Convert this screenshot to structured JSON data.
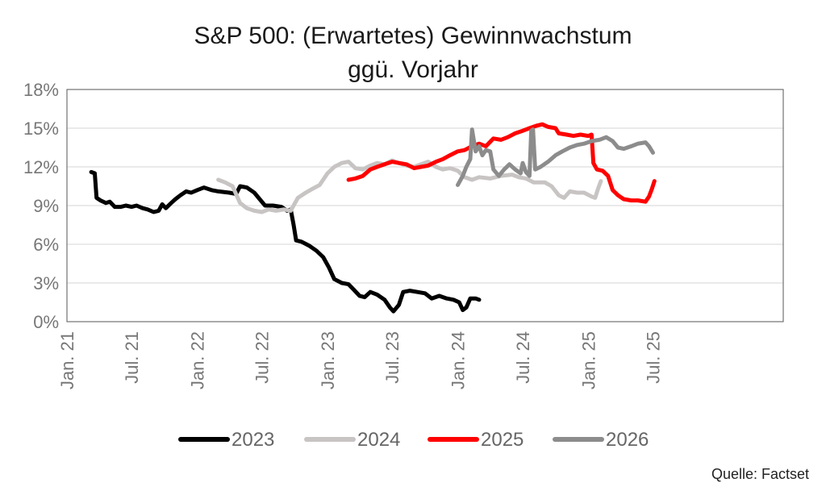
{
  "chart_data": {
    "type": "line",
    "title": [
      "S&P 500: (Erwartetes) Gewinnwachstum",
      "ggü. Vorjahr"
    ],
    "ylim": [
      0,
      18
    ],
    "yticks": [
      "0%",
      "3%",
      "6%",
      "9%",
      "12%",
      "15%",
      "18%"
    ],
    "xlim": [
      "2021-01-01",
      "2026-07-01"
    ],
    "xticks": [
      {
        "date": "2021-01-01",
        "label": "Jan. 21"
      },
      {
        "date": "2021-07-01",
        "label": "Jul. 21"
      },
      {
        "date": "2022-01-01",
        "label": "Jan. 22"
      },
      {
        "date": "2022-07-01",
        "label": "Jul. 22"
      },
      {
        "date": "2023-01-01",
        "label": "Jan. 23"
      },
      {
        "date": "2023-07-01",
        "label": "Jul. 23"
      },
      {
        "date": "2024-01-01",
        "label": "Jan. 24"
      },
      {
        "date": "2024-07-01",
        "label": "Jul. 24"
      },
      {
        "date": "2025-01-01",
        "label": "Jan. 25"
      },
      {
        "date": "2025-07-01",
        "label": "Jul. 25"
      }
    ],
    "grid": true,
    "legend": "bottom",
    "series": [
      {
        "name": "2023",
        "color": "#000000",
        "points": [
          [
            "2021-03-10",
            11.6
          ],
          [
            "2021-03-20",
            11.5
          ],
          [
            "2021-03-25",
            9.6
          ],
          [
            "2021-04-05",
            9.4
          ],
          [
            "2021-04-20",
            9.2
          ],
          [
            "2021-05-01",
            9.3
          ],
          [
            "2021-05-15",
            8.9
          ],
          [
            "2021-06-01",
            8.9
          ],
          [
            "2021-06-15",
            9.0
          ],
          [
            "2021-07-01",
            8.9
          ],
          [
            "2021-07-15",
            9.0
          ],
          [
            "2021-08-01",
            8.8
          ],
          [
            "2021-08-15",
            8.7
          ],
          [
            "2021-09-01",
            8.5
          ],
          [
            "2021-09-15",
            8.6
          ],
          [
            "2021-09-25",
            9.1
          ],
          [
            "2021-10-05",
            8.8
          ],
          [
            "2021-10-20",
            9.2
          ],
          [
            "2021-11-01",
            9.5
          ],
          [
            "2021-11-15",
            9.8
          ],
          [
            "2021-12-01",
            10.1
          ],
          [
            "2021-12-15",
            10.0
          ],
          [
            "2022-01-01",
            10.2
          ],
          [
            "2022-01-20",
            10.4
          ],
          [
            "2022-02-10",
            10.2
          ],
          [
            "2022-03-01",
            10.1
          ],
          [
            "2022-04-01",
            10.0
          ],
          [
            "2022-04-20",
            9.9
          ],
          [
            "2022-05-01",
            10.5
          ],
          [
            "2022-05-20",
            10.4
          ],
          [
            "2022-06-10",
            10.0
          ],
          [
            "2022-06-25",
            9.5
          ],
          [
            "2022-07-10",
            9.0
          ],
          [
            "2022-08-01",
            9.0
          ],
          [
            "2022-08-25",
            8.9
          ],
          [
            "2022-09-10",
            8.6
          ],
          [
            "2022-09-20",
            8.7
          ],
          [
            "2022-09-28",
            7.5
          ],
          [
            "2022-10-05",
            6.3
          ],
          [
            "2022-10-20",
            6.2
          ],
          [
            "2022-11-10",
            5.9
          ],
          [
            "2022-12-01",
            5.5
          ],
          [
            "2022-12-20",
            5.0
          ],
          [
            "2023-01-05",
            4.2
          ],
          [
            "2023-01-20",
            3.3
          ],
          [
            "2023-02-10",
            3.0
          ],
          [
            "2023-03-01",
            2.9
          ],
          [
            "2023-03-15",
            2.5
          ],
          [
            "2023-04-01",
            2.0
          ],
          [
            "2023-04-15",
            1.9
          ],
          [
            "2023-05-01",
            2.3
          ],
          [
            "2023-05-20",
            2.1
          ],
          [
            "2023-06-10",
            1.7
          ],
          [
            "2023-06-25",
            1.1
          ],
          [
            "2023-07-05",
            0.8
          ],
          [
            "2023-07-20",
            1.3
          ],
          [
            "2023-08-01",
            2.3
          ],
          [
            "2023-08-20",
            2.4
          ],
          [
            "2023-09-10",
            2.3
          ],
          [
            "2023-10-01",
            2.2
          ],
          [
            "2023-10-20",
            1.8
          ],
          [
            "2023-11-10",
            2.0
          ],
          [
            "2023-12-01",
            1.8
          ],
          [
            "2023-12-20",
            1.7
          ],
          [
            "2024-01-05",
            1.5
          ],
          [
            "2024-01-15",
            0.9
          ],
          [
            "2024-01-25",
            1.1
          ],
          [
            "2024-02-05",
            1.8
          ],
          [
            "2024-02-20",
            1.8
          ],
          [
            "2024-03-01",
            1.7
          ]
        ]
      },
      {
        "name": "2024",
        "color": "#c8c4c4",
        "points": [
          [
            "2022-03-01",
            11.0
          ],
          [
            "2022-03-20",
            10.8
          ],
          [
            "2022-04-10",
            10.5
          ],
          [
            "2022-05-01",
            9.2
          ],
          [
            "2022-05-20",
            8.8
          ],
          [
            "2022-06-10",
            8.6
          ],
          [
            "2022-07-01",
            8.5
          ],
          [
            "2022-07-20",
            8.7
          ],
          [
            "2022-08-10",
            8.6
          ],
          [
            "2022-09-01",
            8.7
          ],
          [
            "2022-09-20",
            8.6
          ],
          [
            "2022-10-10",
            9.6
          ],
          [
            "2022-11-01",
            10.0
          ],
          [
            "2022-11-20",
            10.3
          ],
          [
            "2022-12-10",
            10.6
          ],
          [
            "2023-01-01",
            11.5
          ],
          [
            "2023-01-20",
            12.0
          ],
          [
            "2023-02-10",
            12.3
          ],
          [
            "2023-03-01",
            12.4
          ],
          [
            "2023-03-20",
            11.9
          ],
          [
            "2023-04-10",
            11.8
          ],
          [
            "2023-05-01",
            12.1
          ],
          [
            "2023-05-20",
            12.3
          ],
          [
            "2023-06-10",
            12.2
          ],
          [
            "2023-07-01",
            12.5
          ],
          [
            "2023-07-20",
            12.3
          ],
          [
            "2023-08-10",
            12.1
          ],
          [
            "2023-09-01",
            12.0
          ],
          [
            "2023-09-20",
            12.2
          ],
          [
            "2023-10-10",
            12.4
          ],
          [
            "2023-11-01",
            12.0
          ],
          [
            "2023-11-20",
            11.8
          ],
          [
            "2023-12-10",
            11.9
          ],
          [
            "2024-01-01",
            11.7
          ],
          [
            "2024-01-20",
            11.2
          ],
          [
            "2024-02-10",
            11.0
          ],
          [
            "2024-03-01",
            11.2
          ],
          [
            "2024-04-01",
            11.1
          ],
          [
            "2024-05-01",
            11.3
          ],
          [
            "2024-06-01",
            11.4
          ],
          [
            "2024-06-20",
            11.2
          ],
          [
            "2024-07-10",
            11.1
          ],
          [
            "2024-08-01",
            10.8
          ],
          [
            "2024-09-01",
            10.8
          ],
          [
            "2024-09-20",
            10.5
          ],
          [
            "2024-10-10",
            9.8
          ],
          [
            "2024-10-25",
            9.6
          ],
          [
            "2024-11-10",
            10.1
          ],
          [
            "2024-12-01",
            10.0
          ],
          [
            "2024-12-20",
            10.0
          ],
          [
            "2025-01-10",
            9.7
          ],
          [
            "2025-01-20",
            9.6
          ],
          [
            "2025-01-28",
            10.3
          ],
          [
            "2025-02-05",
            10.9
          ]
        ]
      },
      {
        "name": "2025",
        "color": "#ff0000",
        "points": [
          [
            "2023-03-01",
            11.0
          ],
          [
            "2023-03-20",
            11.1
          ],
          [
            "2023-04-10",
            11.3
          ],
          [
            "2023-05-01",
            11.8
          ],
          [
            "2023-05-20",
            12.0
          ],
          [
            "2023-06-10",
            12.2
          ],
          [
            "2023-07-01",
            12.4
          ],
          [
            "2023-07-20",
            12.3
          ],
          [
            "2023-08-10",
            12.2
          ],
          [
            "2023-09-01",
            11.9
          ],
          [
            "2023-09-20",
            12.0
          ],
          [
            "2023-10-10",
            12.1
          ],
          [
            "2023-11-01",
            12.4
          ],
          [
            "2023-11-20",
            12.6
          ],
          [
            "2023-12-10",
            12.9
          ],
          [
            "2024-01-01",
            13.2
          ],
          [
            "2024-01-20",
            13.3
          ],
          [
            "2024-02-10",
            13.6
          ],
          [
            "2024-03-01",
            13.8
          ],
          [
            "2024-03-20",
            13.6
          ],
          [
            "2024-04-10",
            14.2
          ],
          [
            "2024-05-01",
            14.1
          ],
          [
            "2024-05-20",
            14.3
          ],
          [
            "2024-06-10",
            14.6
          ],
          [
            "2024-07-01",
            14.8
          ],
          [
            "2024-07-20",
            15.0
          ],
          [
            "2024-08-10",
            15.2
          ],
          [
            "2024-08-25",
            15.3
          ],
          [
            "2024-09-10",
            15.1
          ],
          [
            "2024-10-01",
            15.0
          ],
          [
            "2024-10-10",
            14.6
          ],
          [
            "2024-11-01",
            14.5
          ],
          [
            "2024-11-20",
            14.4
          ],
          [
            "2024-12-10",
            14.5
          ],
          [
            "2025-01-01",
            14.4
          ],
          [
            "2025-01-10",
            14.5
          ],
          [
            "2025-01-15",
            12.3
          ],
          [
            "2025-01-25",
            11.8
          ],
          [
            "2025-02-10",
            11.7
          ],
          [
            "2025-02-25",
            11.3
          ],
          [
            "2025-03-10",
            10.2
          ],
          [
            "2025-03-25",
            9.8
          ],
          [
            "2025-04-10",
            9.5
          ],
          [
            "2025-05-01",
            9.4
          ],
          [
            "2025-05-20",
            9.4
          ],
          [
            "2025-06-10",
            9.3
          ],
          [
            "2025-06-20",
            9.7
          ],
          [
            "2025-06-28",
            10.3
          ],
          [
            "2025-07-05",
            10.9
          ]
        ]
      },
      {
        "name": "2026",
        "color": "#8c8c8c",
        "points": [
          [
            "2024-01-01",
            10.6
          ],
          [
            "2024-01-15",
            11.3
          ],
          [
            "2024-01-25",
            12.0
          ],
          [
            "2024-02-05",
            12.6
          ],
          [
            "2024-02-10",
            14.9
          ],
          [
            "2024-02-20",
            13.2
          ],
          [
            "2024-03-01",
            13.6
          ],
          [
            "2024-03-10",
            12.9
          ],
          [
            "2024-03-20",
            13.3
          ],
          [
            "2024-04-01",
            13.2
          ],
          [
            "2024-04-10",
            11.8
          ],
          [
            "2024-04-25",
            11.3
          ],
          [
            "2024-05-10",
            11.8
          ],
          [
            "2024-05-25",
            12.2
          ],
          [
            "2024-06-10",
            11.8
          ],
          [
            "2024-06-25",
            11.5
          ],
          [
            "2024-07-01",
            12.3
          ],
          [
            "2024-07-10",
            11.6
          ],
          [
            "2024-07-20",
            11.3
          ],
          [
            "2024-07-25",
            14.8
          ],
          [
            "2024-07-30",
            14.9
          ],
          [
            "2024-08-05",
            11.8
          ],
          [
            "2024-08-20",
            12.0
          ],
          [
            "2024-09-10",
            12.4
          ],
          [
            "2024-10-01",
            12.9
          ],
          [
            "2024-10-20",
            13.2
          ],
          [
            "2024-11-10",
            13.5
          ],
          [
            "2024-12-01",
            13.7
          ],
          [
            "2024-12-20",
            13.8
          ],
          [
            "2025-01-10",
            14.0
          ],
          [
            "2025-02-01",
            14.1
          ],
          [
            "2025-02-20",
            14.3
          ],
          [
            "2025-03-10",
            14.0
          ],
          [
            "2025-03-25",
            13.5
          ],
          [
            "2025-04-10",
            13.4
          ],
          [
            "2025-05-01",
            13.6
          ],
          [
            "2025-05-20",
            13.8
          ],
          [
            "2025-06-10",
            13.9
          ],
          [
            "2025-06-20",
            13.6
          ],
          [
            "2025-07-01",
            13.1
          ]
        ]
      }
    ]
  },
  "source": "Quelle: Factset"
}
